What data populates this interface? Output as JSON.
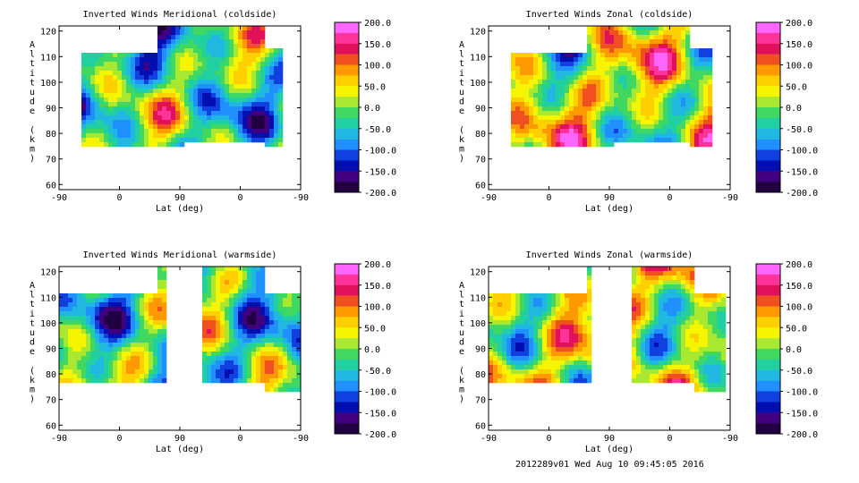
{
  "footer_text": "2012289v01 Wed Aug 10 09:45:05 2016",
  "colorbar": {
    "labels": [
      "200.0",
      "150.0",
      "100.0",
      "50.0",
      "0.0",
      "-50.0",
      "-100.0",
      "-150.0",
      "-200.0"
    ],
    "colors": [
      "#ff66ff",
      "#ff3399",
      "#e0105a",
      "#f05020",
      "#ff9900",
      "#ffd000",
      "#f5f500",
      "#a8e830",
      "#40d860",
      "#20d0a0",
      "#20b8e0",
      "#2090ff",
      "#1040e0",
      "#0010b0",
      "#400080",
      "#200040"
    ]
  },
  "chart_data": [
    {
      "type": "contour",
      "title": "Inverted Winds Meridional (coldside)",
      "xlabel": "Lat (deg)",
      "ylabel": "Altitude (km)",
      "xticks": [
        "-90",
        "0",
        "90",
        "0",
        "-90"
      ],
      "yticks": [
        "60",
        "70",
        "80",
        "90",
        "100",
        "110",
        "120"
      ],
      "ylim": [
        58,
        122
      ],
      "colorbar_range": [
        -200,
        200
      ]
    },
    {
      "type": "contour",
      "title": "Inverted Winds Zonal (coldside)",
      "xlabel": "Lat (deg)",
      "ylabel": "Altitude (km)",
      "xticks": [
        "-90",
        "0",
        "90",
        "0",
        "-90"
      ],
      "yticks": [
        "60",
        "70",
        "80",
        "90",
        "100",
        "110",
        "120"
      ],
      "ylim": [
        58,
        122
      ],
      "colorbar_range": [
        -200,
        200
      ]
    },
    {
      "type": "contour",
      "title": "Inverted Winds Meridional (warmside)",
      "xlabel": "Lat (deg)",
      "ylabel": "Altitude (km)",
      "xticks": [
        "-90",
        "0",
        "90",
        "0",
        "-90"
      ],
      "yticks": [
        "60",
        "70",
        "80",
        "90",
        "100",
        "110",
        "120"
      ],
      "ylim": [
        58,
        122
      ],
      "colorbar_range": [
        -200,
        200
      ]
    },
    {
      "type": "contour",
      "title": "Inverted Winds Zonal (warmside)",
      "xlabel": "Lat (deg)",
      "ylabel": "Altitude (km)",
      "xticks": [
        "-90",
        "0",
        "90",
        "0",
        "-90"
      ],
      "yticks": [
        "60",
        "70",
        "80",
        "90",
        "100",
        "110",
        "120"
      ],
      "ylim": [
        58,
        122
      ],
      "colorbar_range": [
        -200,
        200
      ]
    }
  ]
}
